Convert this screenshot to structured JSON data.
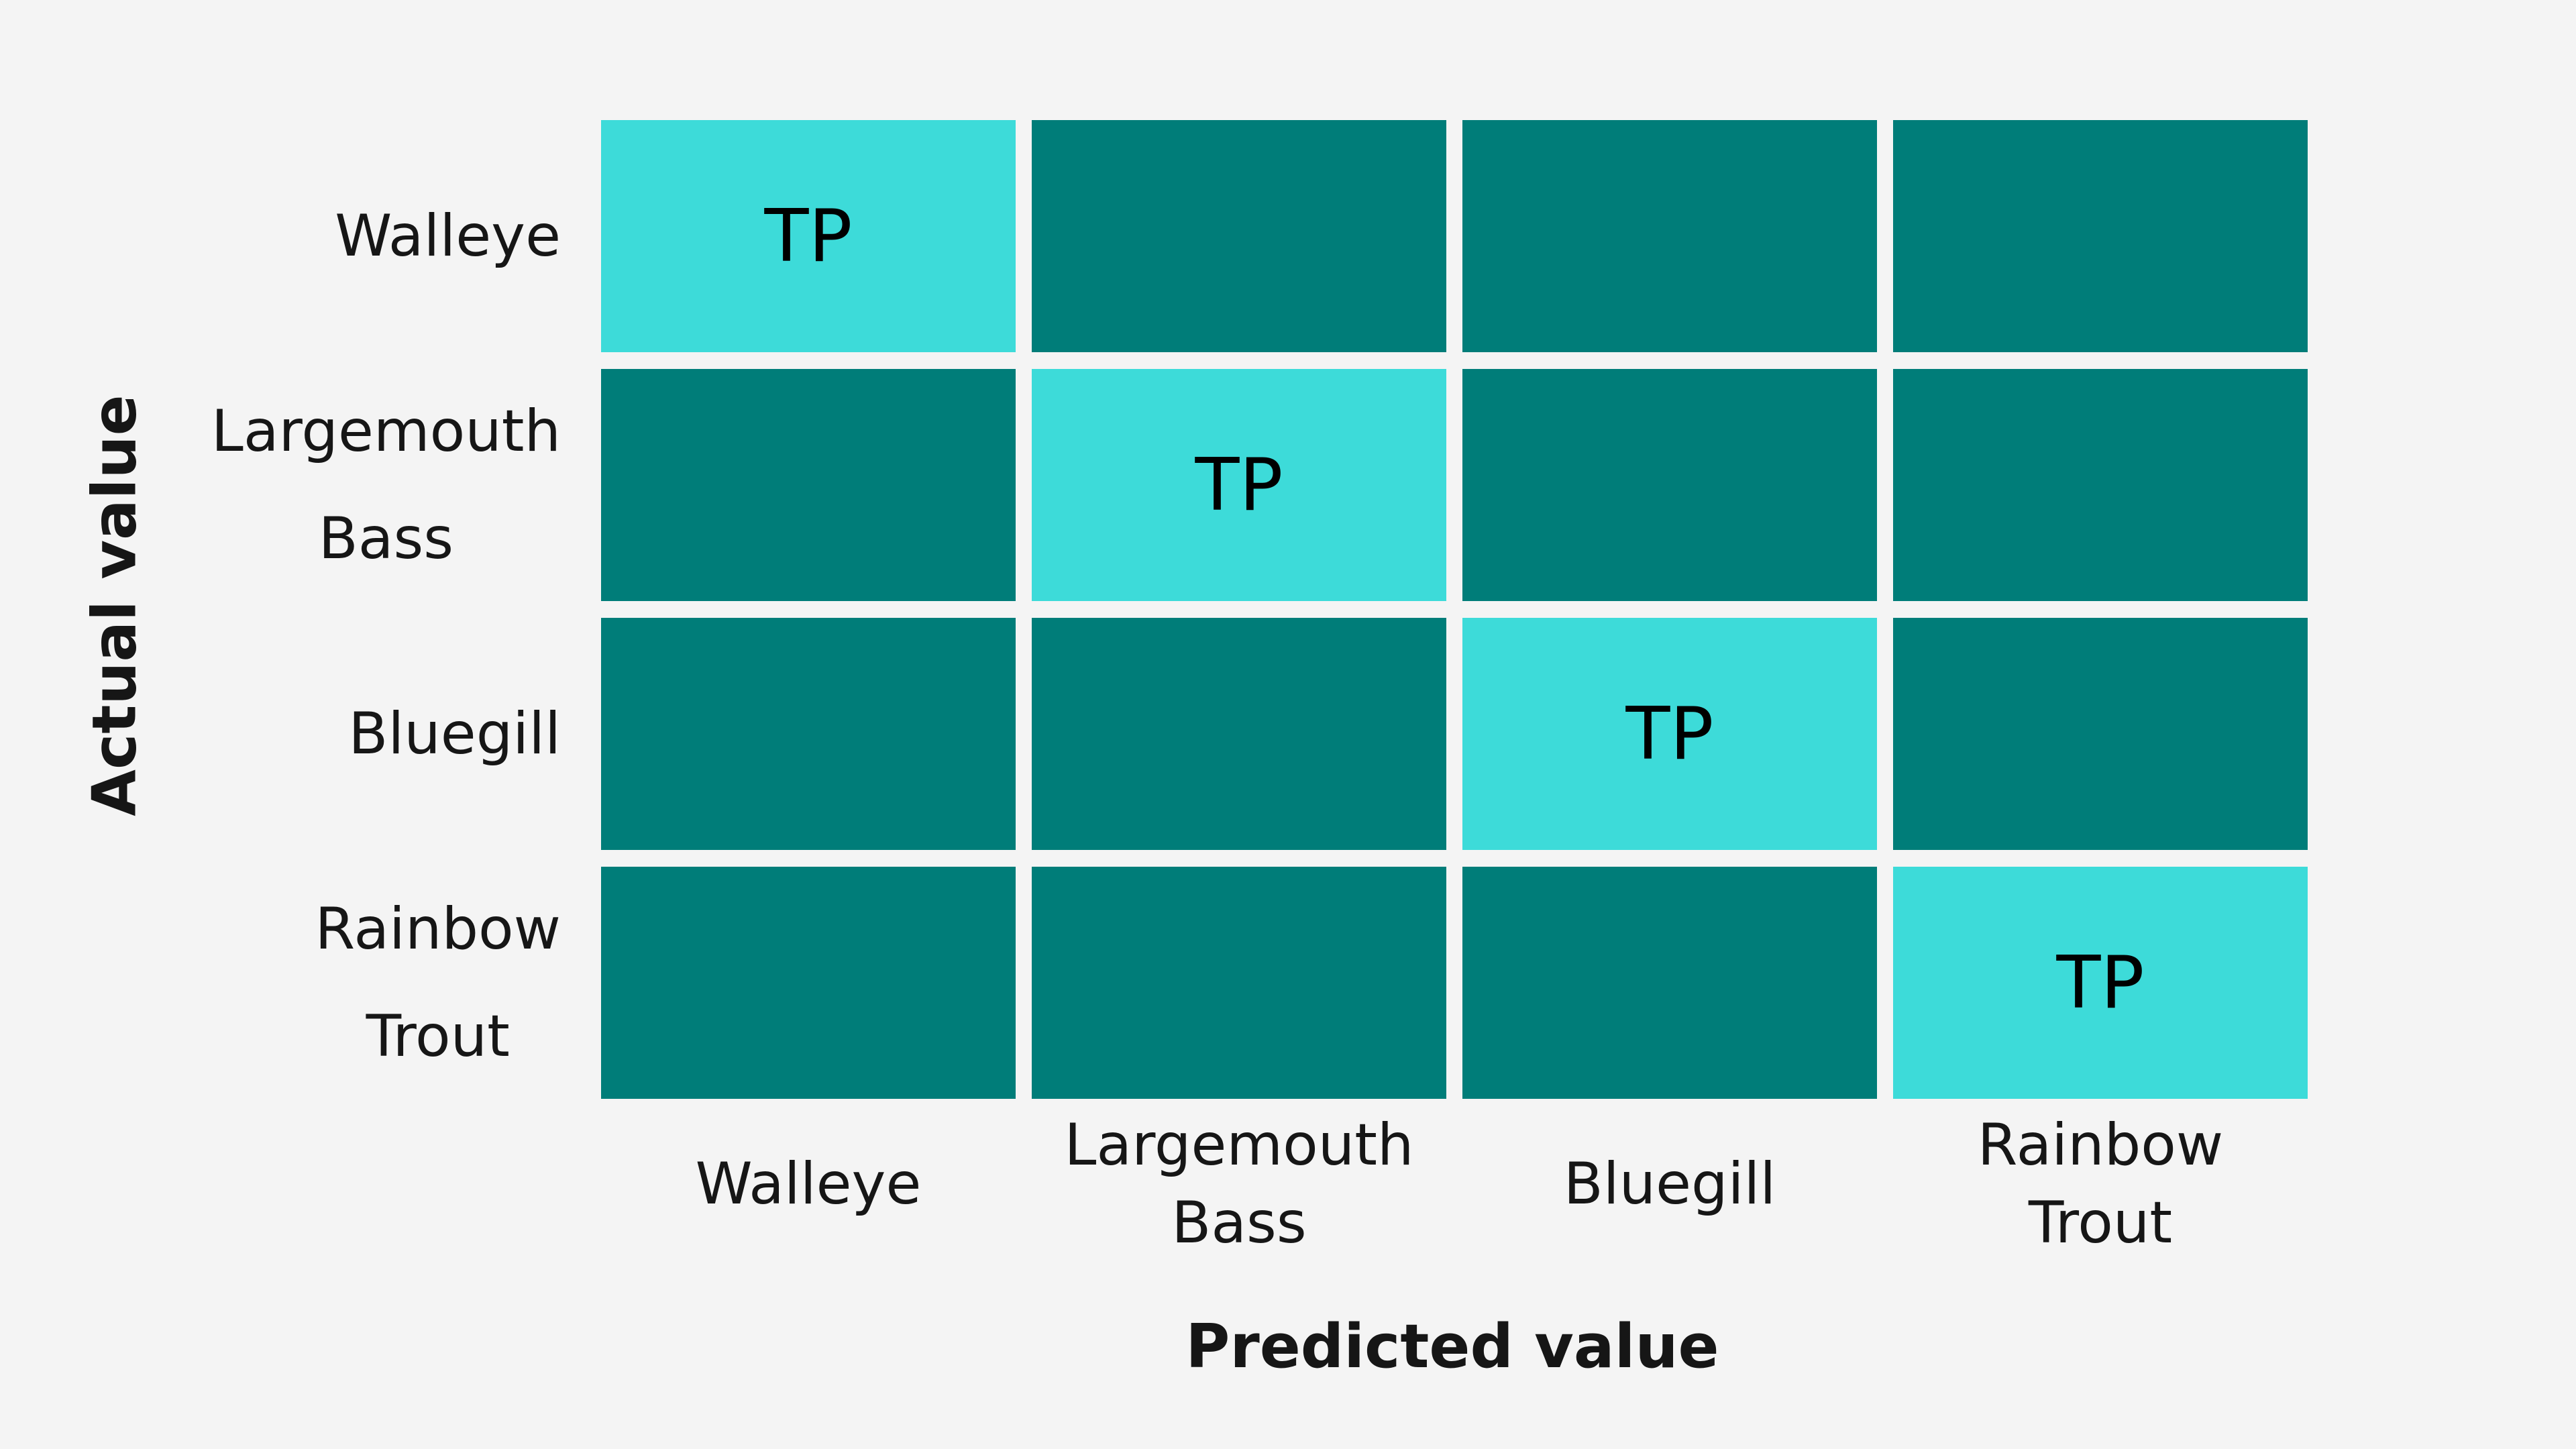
{
  "matrix": {
    "x_axis_title": "Predicted value",
    "y_axis_title": "Actual value",
    "row_labels": [
      [
        "Walleye"
      ],
      [
        "Largemouth",
        "Bass"
      ],
      [
        "Bluegill"
      ],
      [
        "Rainbow",
        "Trout"
      ]
    ],
    "column_labels": [
      [
        "Walleye"
      ],
      [
        "Largemouth",
        "Bass"
      ],
      [
        "Bluegill"
      ],
      [
        "Rainbow",
        "Trout"
      ]
    ],
    "cells": [
      [
        "TP",
        null,
        null,
        null
      ],
      [
        null,
        "TP",
        null,
        null
      ],
      [
        null,
        null,
        "TP",
        null
      ],
      [
        null,
        null,
        null,
        "TP"
      ]
    ],
    "colors": {
      "highlight": "#3ddbd9",
      "base": "#007d79"
    }
  }
}
